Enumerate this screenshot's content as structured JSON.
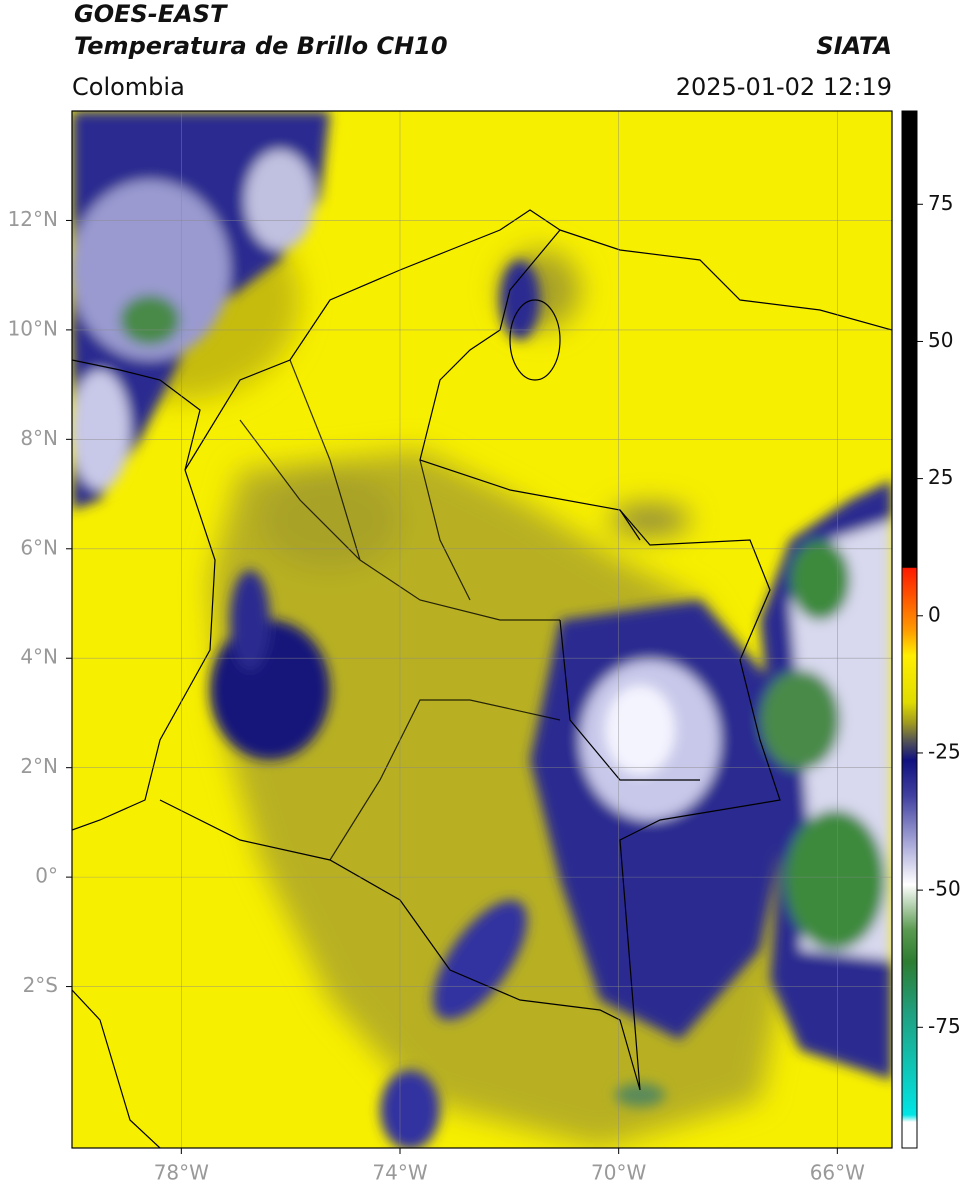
{
  "header": {
    "title": "GOES-EAST",
    "subtitle": "Temperatura de Brillo CH10",
    "source": "SIATA",
    "region": "Colombia",
    "timestamp": "2025-01-02 12:19"
  },
  "map": {
    "xlim": [
      -80,
      -65
    ],
    "ylim": [
      -4.95,
      14
    ],
    "grid": true,
    "xticks": [
      {
        "value": -78,
        "label": "78°W"
      },
      {
        "value": -74,
        "label": "74°W"
      },
      {
        "value": -70,
        "label": "70°W"
      },
      {
        "value": -66,
        "label": "66°W"
      }
    ],
    "yticks": [
      {
        "value": 12,
        "label": "12°N"
      },
      {
        "value": 10,
        "label": "10°N"
      },
      {
        "value": 8,
        "label": "8°N"
      },
      {
        "value": 6,
        "label": "6°N"
      },
      {
        "value": 4,
        "label": "4°N"
      },
      {
        "value": 2,
        "label": "2°N"
      },
      {
        "value": 0,
        "label": "0°"
      },
      {
        "value": -2,
        "label": "2°S"
      }
    ]
  },
  "colorbar": {
    "lim": [
      -97,
      92
    ],
    "ticks": [
      75,
      50,
      25,
      0,
      -25,
      -50,
      -75
    ]
  }
}
